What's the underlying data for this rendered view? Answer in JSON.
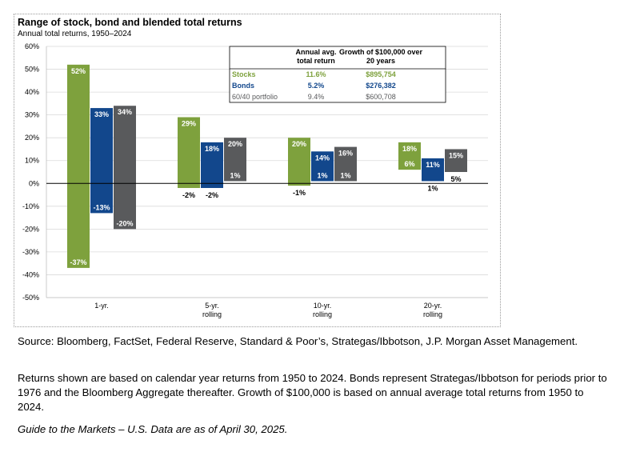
{
  "title": "Range of stock, bond and blended total returns",
  "subtitle": "Annual total returns, 1950–2024",
  "chart_data": {
    "type": "bar",
    "subtype": "floating-range",
    "title": "Range of stock, bond and blended total returns",
    "subtitle": "Annual total returns, 1950–2024",
    "ylim": [
      -50,
      60
    ],
    "ytick_step": 10,
    "y_unit": "%",
    "grid": true,
    "categories": [
      [
        "1-yr."
      ],
      [
        "5-yr.",
        "rolling"
      ],
      [
        "10-yr.",
        "rolling"
      ],
      [
        "20-yr.",
        "rolling"
      ]
    ],
    "series": [
      {
        "name": "Stocks",
        "color": "#7ea13d",
        "high": [
          52,
          29,
          20,
          18
        ],
        "low": [
          -37,
          -2,
          -1,
          6
        ]
      },
      {
        "name": "Bonds",
        "color": "#12478c",
        "high": [
          33,
          18,
          14,
          11
        ],
        "low": [
          -13,
          -2,
          1,
          1
        ]
      },
      {
        "name": "60/40 portfolio",
        "color": "#595a5c",
        "high": [
          34,
          20,
          16,
          15
        ],
        "low": [
          -20,
          1,
          1,
          5
        ]
      }
    ],
    "table": {
      "headers": [
        [
          "Annual avg.",
          "total return"
        ],
        [
          "Growth of $100,000 over",
          "20 years"
        ]
      ],
      "rows": [
        {
          "label": "Stocks",
          "avg": "11.6%",
          "growth": "$895,754",
          "color": "#7ea13d"
        },
        {
          "label": "Bonds",
          "avg": "5.2%",
          "growth": "$276,382",
          "color": "#12478c"
        },
        {
          "label": "60/40 portfolio",
          "avg": "9.4%",
          "growth": "$600,708",
          "color": "#595a5c"
        }
      ]
    }
  },
  "footnotes": {
    "source": "Source: Bloomberg, FactSet, Federal Reserve, Standard & Poor’s, Strategas/Ibbotson, J.P. Morgan Asset Management.",
    "note": "Returns shown are based on calendar year returns from 1950 to 2024. Bonds represent Strategas/Ibbotson for periods prior to 1976 and the Bloomberg Aggregate thereafter. Growth of $100,000 is based on annual average total returns from 1950 to 2024.",
    "guide": "Guide to the Markets – U.S. Data are as of April 30, 2025."
  }
}
